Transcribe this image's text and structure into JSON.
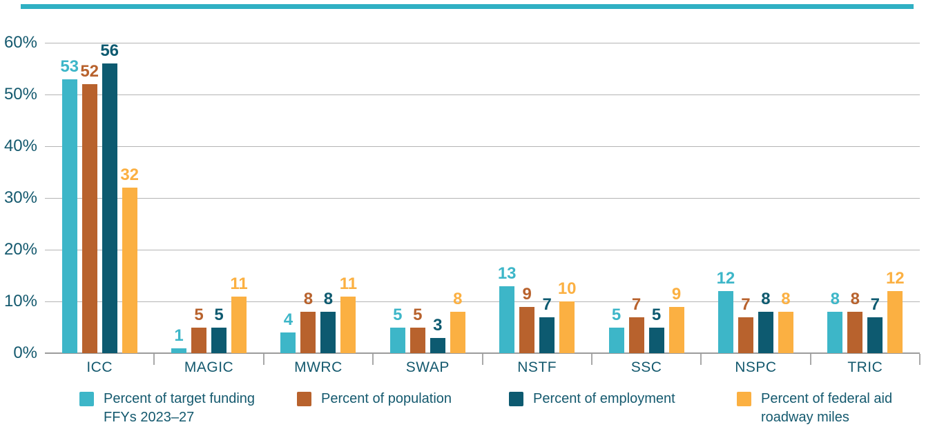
{
  "figure": {
    "background": "#ffffff",
    "top_rule_color": "#2fb0c3",
    "text_color": "#14596e",
    "gridline_color": "#b4b4b4",
    "axis_color": "#9c9c9c"
  },
  "chart_data": {
    "type": "bar",
    "categories": [
      "ICC",
      "MAGIC",
      "MWRC",
      "SWAP",
      "NSTF",
      "SSC",
      "NSPC",
      "TRIC"
    ],
    "series": [
      {
        "name": "Percent of target funding FFYs 2023–27",
        "legend_lines": [
          "Percent of target funding",
          "FFYs 2023–27"
        ],
        "color": "#3db6c8",
        "values": [
          53,
          1,
          4,
          5,
          13,
          5,
          12,
          8
        ]
      },
      {
        "name": "Percent of population",
        "legend_lines": [
          "Percent of population"
        ],
        "color": "#b8622d",
        "values": [
          52,
          5,
          8,
          5,
          9,
          7,
          7,
          8
        ]
      },
      {
        "name": "Percent of employment",
        "legend_lines": [
          "Percent of employment"
        ],
        "color": "#0d5a70",
        "values": [
          56,
          5,
          8,
          3,
          7,
          5,
          8,
          7
        ]
      },
      {
        "name": "Percent of federal aid roadway miles",
        "legend_lines": [
          "Percent of federal aid",
          "roadway miles"
        ],
        "color": "#fbb042",
        "values": [
          32,
          11,
          11,
          8,
          10,
          9,
          8,
          12
        ]
      }
    ],
    "title": "",
    "xlabel": "",
    "ylabel": "",
    "y_axis": {
      "min": 0,
      "max": 60,
      "step": 10,
      "tick_labels": [
        "0%",
        "10%",
        "20%",
        "30%",
        "40%",
        "50%",
        "60%"
      ]
    },
    "grid": "horizontal",
    "legend_position": "bottom",
    "data_labels": true
  }
}
